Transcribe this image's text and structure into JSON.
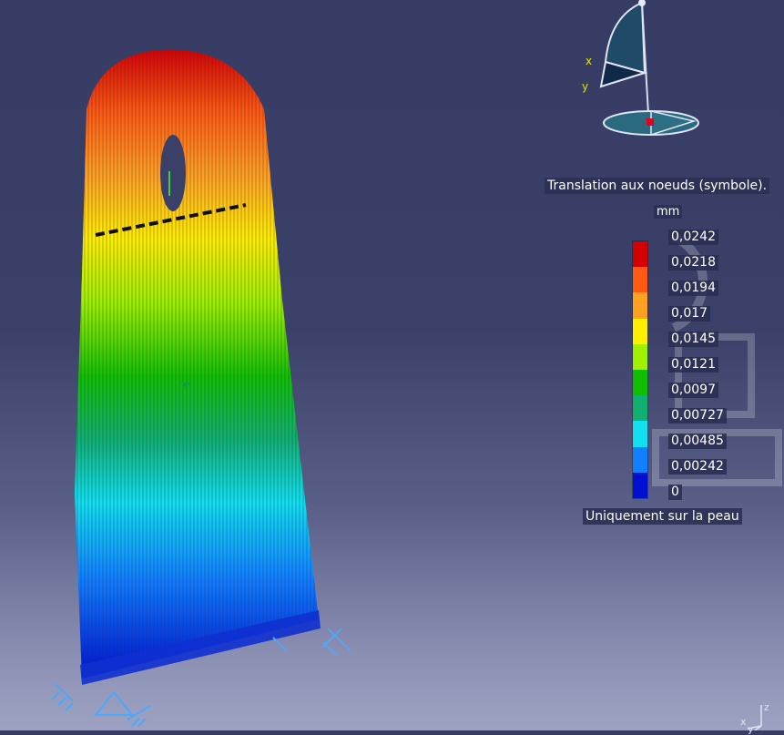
{
  "viewport": {
    "compass": {
      "axis_labels": {
        "x": "x",
        "y": "y",
        "z": "z"
      }
    },
    "legend": {
      "title": "Translation aux noeuds (symbole).",
      "unit": "mm",
      "ticks": [
        "0,0242",
        "0,0218",
        "0,0194",
        "0,017",
        "0,0145",
        "0,0121",
        "0,0097",
        "0,00727",
        "0,00485",
        "0,00242",
        "0"
      ],
      "band_colors": [
        "#d40000",
        "#ff5a10",
        "#ffa020",
        "#ffee00",
        "#a0f000",
        "#10c000",
        "#10b070",
        "#10e0f0",
        "#1080ff",
        "#0010d0"
      ],
      "footer": "Uniquement sur la peau"
    },
    "triad": {
      "x": "x",
      "y": "y",
      "z": "z"
    },
    "model": {
      "name": "deformed-part-mesh",
      "max_value_color": "#d40000",
      "min_value_color": "#0010d0"
    }
  }
}
